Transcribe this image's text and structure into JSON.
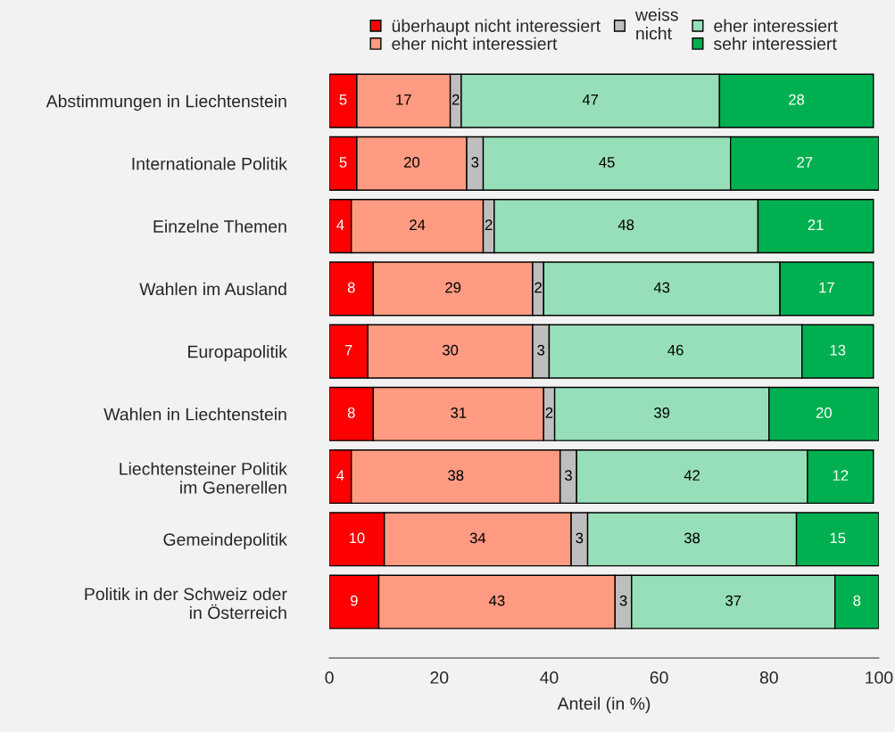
{
  "chart_data": {
    "type": "bar",
    "orientation": "horizontal",
    "stacked": true,
    "data_labels": true,
    "xlabel": "Anteil (in %)",
    "xlim": [
      0,
      100
    ],
    "xticks": [
      0,
      20,
      40,
      60,
      80,
      100
    ],
    "grid": false,
    "legend": "top",
    "categories": [
      "Abstimmungen in Liechtenstein",
      "Internationale Politik",
      "Einzelne Themen",
      "Wahlen im Ausland",
      "Europapolitik",
      "Wahlen in Liechtenstein",
      "Liechtensteiner Politik\nim Generellen",
      "Gemeindepolitik",
      "Politik in der Schweiz oder\nin Österreich"
    ],
    "series": [
      {
        "name": "überhaupt nicht interessiert",
        "color": "#ff0000",
        "values": [
          5,
          5,
          4,
          8,
          7,
          8,
          4,
          10,
          9
        ]
      },
      {
        "name": "eher nicht interessiert",
        "color": "#ff9b82",
        "values": [
          17,
          20,
          24,
          29,
          30,
          31,
          38,
          34,
          43
        ]
      },
      {
        "name": "weiss\nnicht",
        "color": "#bebebe",
        "values": [
          2,
          3,
          2,
          2,
          3,
          2,
          3,
          3,
          3
        ]
      },
      {
        "name": "eher interessiert",
        "color": "#96dfb8",
        "values": [
          47,
          45,
          48,
          43,
          46,
          39,
          42,
          38,
          37
        ]
      },
      {
        "name": "sehr interessiert",
        "color": "#00b050",
        "values": [
          28,
          27,
          21,
          17,
          13,
          20,
          12,
          15,
          8
        ]
      }
    ]
  }
}
